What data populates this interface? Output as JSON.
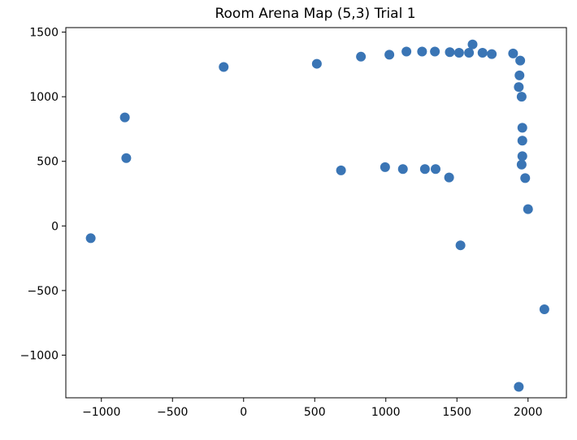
{
  "chart_data": {
    "type": "scatter",
    "title": "Room Arena Map (5,3) Trial 1",
    "xlabel": "",
    "ylabel": "",
    "xlim": [
      -1250,
      2270
    ],
    "ylim": [
      -1330,
      1535
    ],
    "x_ticks": [
      -1000,
      -500,
      0,
      500,
      1000,
      1500,
      2000
    ],
    "x_tick_labels": [
      "−1000",
      "−500",
      "0",
      "500",
      "1000",
      "1500",
      "2000"
    ],
    "y_ticks": [
      -1000,
      -500,
      0,
      500,
      1000,
      1500
    ],
    "y_tick_labels": [
      "−1000",
      "−500",
      "0",
      "500",
      "1000",
      "1500"
    ],
    "grid": false,
    "legend": false,
    "marker_color": "#3a75b5",
    "series": [
      {
        "points": [
          {
            "x": -1075,
            "y": -95
          },
          {
            "x": -835,
            "y": 840
          },
          {
            "x": -825,
            "y": 525
          },
          {
            "x": -140,
            "y": 1230
          },
          {
            "x": 515,
            "y": 1255
          },
          {
            "x": 685,
            "y": 430
          },
          {
            "x": 825,
            "y": 1310
          },
          {
            "x": 995,
            "y": 455
          },
          {
            "x": 1025,
            "y": 1325
          },
          {
            "x": 1120,
            "y": 440
          },
          {
            "x": 1145,
            "y": 1350
          },
          {
            "x": 1275,
            "y": 440
          },
          {
            "x": 1255,
            "y": 1350
          },
          {
            "x": 1345,
            "y": 1350
          },
          {
            "x": 1350,
            "y": 440
          },
          {
            "x": 1445,
            "y": 375
          },
          {
            "x": 1450,
            "y": 1345
          },
          {
            "x": 1515,
            "y": 1340
          },
          {
            "x": 1525,
            "y": -150
          },
          {
            "x": 1585,
            "y": 1340
          },
          {
            "x": 1610,
            "y": 1405
          },
          {
            "x": 1680,
            "y": 1340
          },
          {
            "x": 1745,
            "y": 1330
          },
          {
            "x": 1895,
            "y": 1335
          },
          {
            "x": 1935,
            "y": 1075
          },
          {
            "x": 1940,
            "y": 1165
          },
          {
            "x": 1945,
            "y": 1280
          },
          {
            "x": 1955,
            "y": 1000
          },
          {
            "x": 1960,
            "y": 760
          },
          {
            "x": 1960,
            "y": 660
          },
          {
            "x": 1960,
            "y": 540
          },
          {
            "x": 1955,
            "y": 475
          },
          {
            "x": 1980,
            "y": 370
          },
          {
            "x": 2000,
            "y": 130
          },
          {
            "x": 2115,
            "y": -645
          },
          {
            "x": 1935,
            "y": -1245
          }
        ]
      }
    ]
  }
}
